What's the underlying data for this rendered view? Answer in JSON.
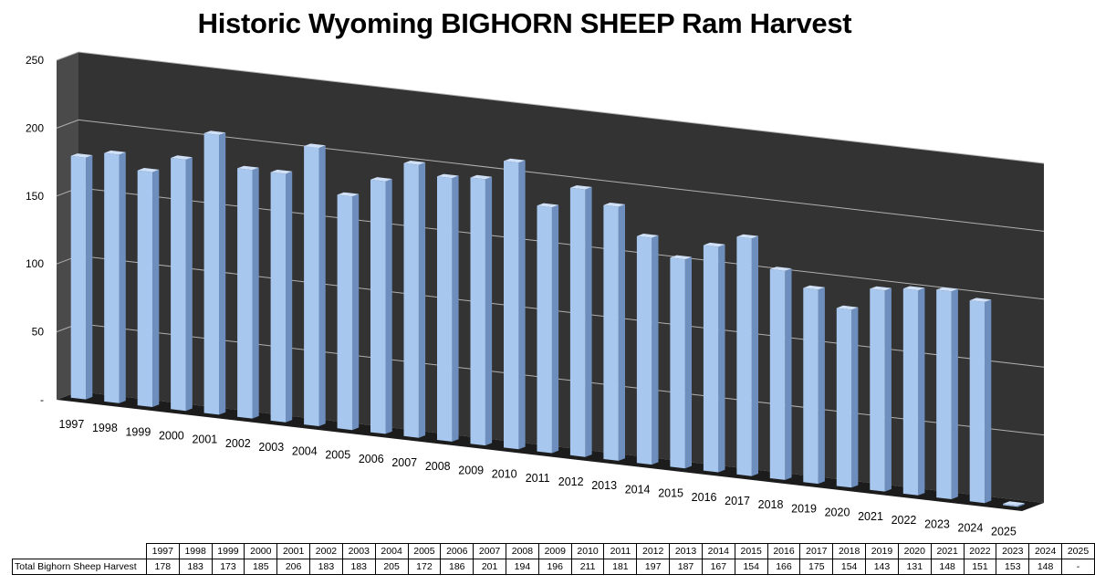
{
  "title": "Historic Wyoming BIGHORN SHEEP Ram Harvest",
  "chart_data": {
    "type": "bar",
    "title": "Historic Wyoming BIGHORN SHEEP Ram Harvest",
    "categories": [
      "1997",
      "1998",
      "1999",
      "2000",
      "2001",
      "2002",
      "2003",
      "2004",
      "2005",
      "2006",
      "2007",
      "2008",
      "2009",
      "2010",
      "2011",
      "2012",
      "2013",
      "2014",
      "2015",
      "2016",
      "2017",
      "2018",
      "2019",
      "2020",
      "2021",
      "2022",
      "2023",
      "2024",
      "2025"
    ],
    "series": [
      {
        "name": "Total Bighorn Sheep Harvest",
        "values": [
          178,
          183,
          173,
          185,
          206,
          183,
          183,
          205,
          172,
          186,
          201,
          194,
          196,
          211,
          181,
          197,
          187,
          167,
          154,
          166,
          175,
          154,
          143,
          131,
          148,
          151,
          153,
          148,
          0
        ]
      }
    ],
    "table_values": [
      "178",
      "183",
      "173",
      "185",
      "206",
      "183",
      "183",
      "205",
      "172",
      "186",
      "201",
      "194",
      "196",
      "211",
      "181",
      "197",
      "187",
      "167",
      "154",
      "166",
      "175",
      "154",
      "143",
      "131",
      "148",
      "151",
      "153",
      "148",
      "-"
    ],
    "y_tick_labels": [
      "-",
      "50",
      "100",
      "150",
      "200",
      "250"
    ],
    "ylim": [
      0,
      250
    ],
    "grid": true,
    "legend": "none",
    "render_3d": true,
    "colors": {
      "bar_face": "#a7c7ef",
      "bar_side": "#6e8fbd",
      "bar_top": "#cfe0f7",
      "back_wall": "#333333",
      "floor": "#1c1c1c",
      "left_wall": "#4a4a4a",
      "gridline": "#b0b0b0"
    }
  }
}
